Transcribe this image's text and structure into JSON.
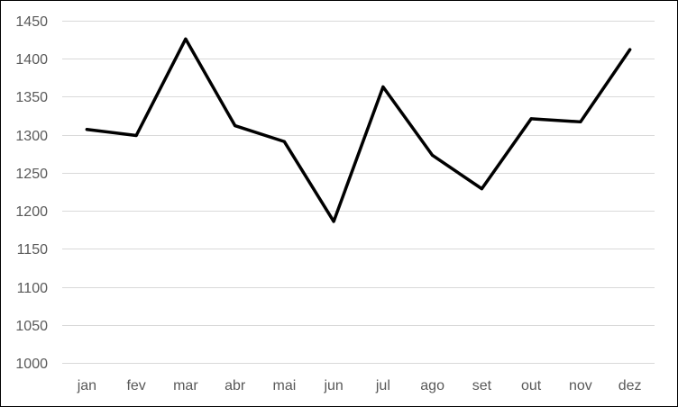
{
  "chart_data": {
    "type": "line",
    "title": "",
    "xlabel": "",
    "ylabel": "",
    "categories": [
      "jan",
      "fev",
      "mar",
      "abr",
      "mai",
      "jun",
      "jul",
      "ago",
      "set",
      "out",
      "nov",
      "dez"
    ],
    "series": [
      {
        "values": [
          1307,
          1299,
          1426,
          1312,
          1291,
          1186,
          1363,
          1273,
          1229,
          1321,
          1317,
          1412
        ]
      }
    ],
    "ylim": [
      1000,
      1450
    ],
    "yticks": [
      1000,
      1050,
      1100,
      1150,
      1200,
      1250,
      1300,
      1350,
      1400,
      1450
    ],
    "grid": true,
    "legend": "none",
    "colors": {
      "line": "#000000",
      "grid": "#d9d9d9",
      "tick_text": "#595959",
      "border": "#000000"
    }
  }
}
